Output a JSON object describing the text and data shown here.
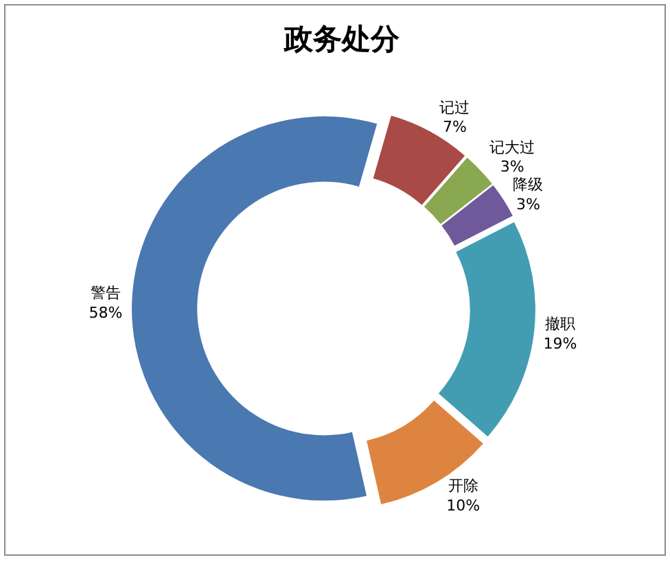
{
  "chart_data": {
    "type": "donut",
    "title": "政务处分",
    "categories": [
      "记过",
      "记大过",
      "降级",
      "撤职",
      "开除",
      "警告"
    ],
    "values": [
      7,
      3,
      3,
      19,
      10,
      58
    ],
    "value_labels": [
      "7%",
      "3%",
      "3%",
      "19%",
      "10%",
      "58%"
    ],
    "colors": [
      "#aa4a47",
      "#8aa84f",
      "#70599a",
      "#429db3",
      "#dd8540",
      "#4a78b0"
    ]
  }
}
